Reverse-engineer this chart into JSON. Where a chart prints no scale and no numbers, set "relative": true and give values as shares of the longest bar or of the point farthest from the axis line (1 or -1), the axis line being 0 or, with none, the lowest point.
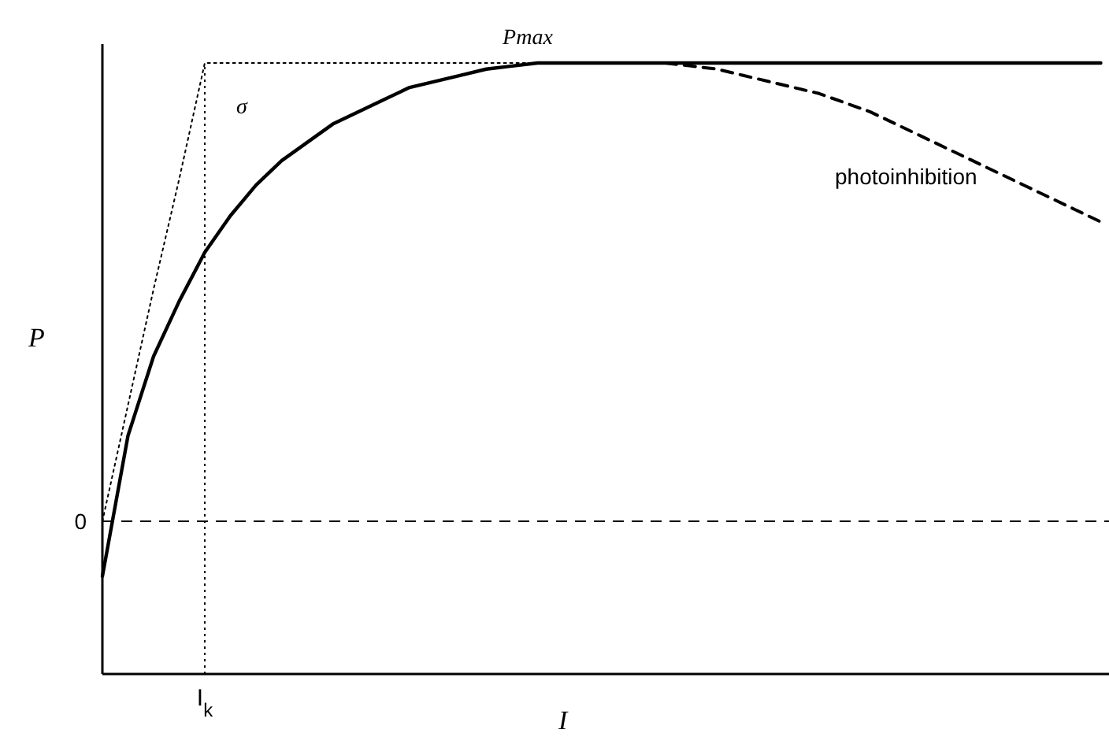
{
  "chart_data": {
    "type": "line",
    "relative": true,
    "xlabel": "I",
    "ylabel": "P",
    "categories": [
      null,
      null,
      null,
      null,
      null,
      null,
      null,
      null,
      null,
      null,
      null,
      null,
      null,
      null,
      null,
      null,
      null,
      null,
      null,
      null,
      null,
      null,
      null,
      null,
      null,
      null,
      null,
      null,
      null,
      null,
      null,
      null,
      null,
      null,
      null,
      null,
      null,
      null,
      null,
      null
    ],
    "series": [
      {
        "color": "#000000",
        "line_style": "solid",
        "values": [
          0.16,
          0.39,
          0.52,
          0.61,
          0.69,
          0.75,
          0.8,
          0.84,
          0.87,
          0.9,
          0.92,
          0.94,
          0.96,
          0.97,
          0.98,
          0.99,
          0.995,
          1,
          1,
          1,
          1,
          1,
          1,
          1,
          1,
          1,
          1,
          1,
          1,
          1,
          1,
          1,
          1,
          1,
          1,
          1,
          1,
          1,
          1,
          1
        ]
      },
      {
        "color": "#000000",
        "line_style": "dashed",
        "values": [
          null,
          null,
          null,
          null,
          null,
          null,
          null,
          null,
          null,
          null,
          null,
          null,
          null,
          null,
          null,
          null,
          null,
          null,
          null,
          null,
          null,
          null,
          1,
          0.995,
          0.99,
          0.98,
          0.97,
          0.96,
          0.95,
          0.935,
          0.92,
          0.9,
          0.88,
          0.86,
          0.84,
          0.82,
          0.8,
          0.78,
          0.76,
          0.74
        ]
      },
      {
        "color": "#000000",
        "line_style": "dotted",
        "values": [
          0.25,
          0.44,
          0.63,
          0.81,
          1,
          1,
          1,
          1,
          1,
          1,
          1,
          1,
          1,
          1,
          1,
          1,
          1,
          1,
          1,
          1,
          1,
          1,
          1,
          null,
          null,
          null,
          null,
          null,
          null,
          null,
          null,
          null,
          null,
          null,
          null,
          null,
          null,
          null,
          null,
          null
        ]
      }
    ],
    "ref_lines": [
      {
        "axis": "y",
        "value": 0.25,
        "label": "0",
        "line_style": "dashed"
      },
      {
        "axis": "x",
        "label": "I$_{k}$",
        "line_style": "dotted"
      }
    ],
    "annotations": [
      "Pmax",
      "σ",
      "photoinhibition"
    ]
  }
}
